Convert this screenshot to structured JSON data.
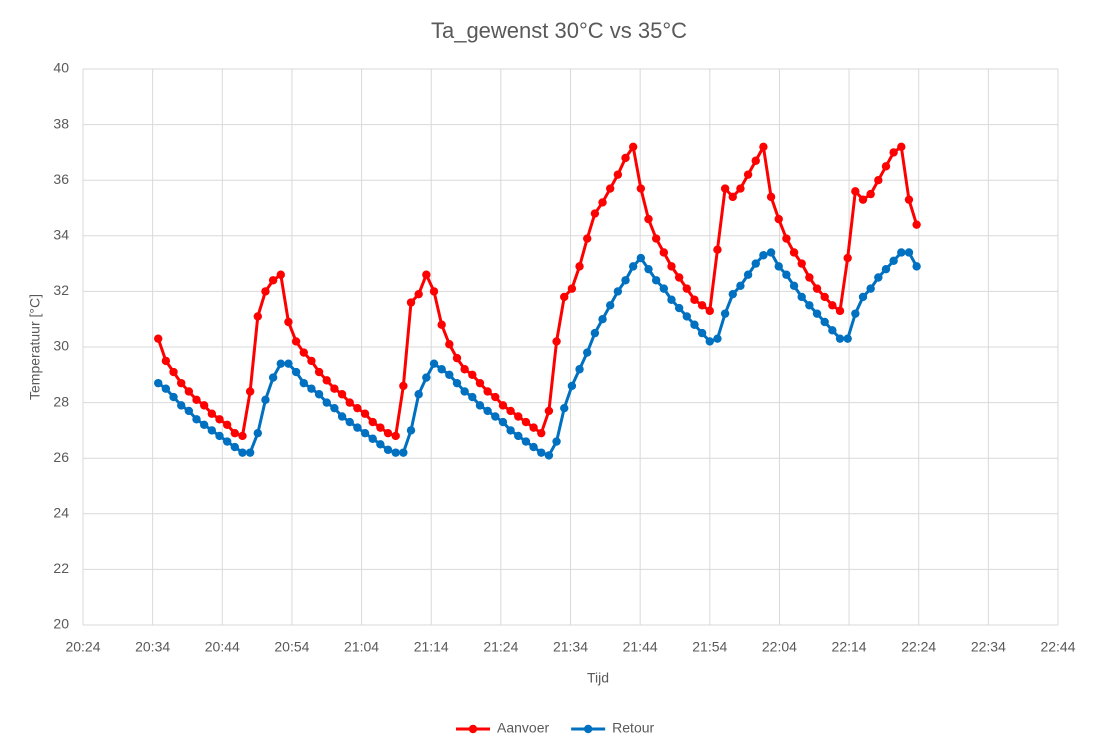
{
  "chart_data": {
    "type": "line",
    "title": "Ta_gewenst 30°C vs 35°C",
    "x_label": "Tijd",
    "y_label": "Temperatuur [°C]",
    "x": [
      1234.8,
      1235.9,
      1237.0,
      1238.1,
      1239.2,
      1240.3,
      1241.4,
      1242.5,
      1243.6,
      1244.7,
      1245.8,
      1246.9,
      1248.0,
      1249.1,
      1250.2,
      1251.3,
      1252.4,
      1253.5,
      1254.6,
      1255.7,
      1256.8,
      1257.9,
      1259.0,
      1260.1,
      1261.2,
      1262.3,
      1263.4,
      1264.5,
      1265.6,
      1266.7,
      1267.8,
      1268.9,
      1270.0,
      1271.1,
      1272.2,
      1273.3,
      1274.4,
      1275.5,
      1276.6,
      1277.7,
      1278.8,
      1279.9,
      1281.0,
      1282.1,
      1283.2,
      1284.3,
      1285.4,
      1286.5,
      1287.6,
      1288.7,
      1289.8,
      1290.9,
      1292.0,
      1293.1,
      1294.2,
      1295.3,
      1296.4,
      1297.5,
      1298.6,
      1299.7,
      1300.8,
      1301.9,
      1303.0,
      1304.1,
      1305.2,
      1306.3,
      1307.4,
      1308.5,
      1309.6,
      1310.7,
      1311.8,
      1312.9,
      1314.0,
      1315.1,
      1316.2,
      1317.3,
      1318.4,
      1319.5,
      1320.6,
      1321.7,
      1322.8,
      1323.9,
      1325.0,
      1326.1,
      1327.2,
      1328.3,
      1329.4,
      1330.5,
      1331.6,
      1332.7,
      1333.8,
      1334.9,
      1336.0,
      1337.1,
      1338.2,
      1339.3,
      1340.4,
      1341.5,
      1342.6,
      1343.7
    ],
    "series": [
      {
        "name": "Aanvoer",
        "color": "#ff0000",
        "values": [
          30.3,
          29.5,
          29.1,
          28.7,
          28.4,
          28.1,
          27.9,
          27.6,
          27.4,
          27.2,
          26.9,
          26.8,
          28.4,
          31.1,
          32.0,
          32.4,
          32.6,
          30.9,
          30.2,
          29.8,
          29.5,
          29.1,
          28.8,
          28.5,
          28.3,
          28.0,
          27.8,
          27.6,
          27.3,
          27.1,
          26.9,
          26.8,
          28.6,
          31.6,
          31.9,
          32.6,
          32.0,
          30.8,
          30.1,
          29.6,
          29.2,
          29.0,
          28.7,
          28.4,
          28.2,
          27.9,
          27.7,
          27.5,
          27.3,
          27.1,
          26.9,
          27.7,
          30.2,
          31.8,
          32.1,
          32.9,
          33.9,
          34.8,
          35.2,
          35.7,
          36.2,
          36.8,
          37.2,
          35.7,
          34.6,
          33.9,
          33.4,
          32.9,
          32.5,
          32.1,
          31.7,
          31.5,
          31.3,
          33.5,
          35.7,
          35.4,
          35.7,
          36.2,
          36.7,
          37.2,
          35.4,
          34.6,
          33.9,
          33.4,
          33.0,
          32.5,
          32.1,
          31.8,
          31.5,
          31.3,
          33.2,
          35.6,
          35.3,
          35.5,
          36.0,
          36.5,
          37.0,
          37.2,
          35.3,
          34.4
        ]
      },
      {
        "name": "Retour",
        "color": "#0070c0",
        "values": [
          28.7,
          28.5,
          28.2,
          27.9,
          27.7,
          27.4,
          27.2,
          27.0,
          26.8,
          26.6,
          26.4,
          26.2,
          26.2,
          26.9,
          28.1,
          28.9,
          29.4,
          29.4,
          29.1,
          28.7,
          28.5,
          28.3,
          28.0,
          27.8,
          27.5,
          27.3,
          27.1,
          26.9,
          26.7,
          26.5,
          26.3,
          26.2,
          26.2,
          27.0,
          28.3,
          28.9,
          29.4,
          29.2,
          29.0,
          28.7,
          28.4,
          28.2,
          27.9,
          27.7,
          27.5,
          27.3,
          27.0,
          26.8,
          26.6,
          26.4,
          26.2,
          26.1,
          26.6,
          27.8,
          28.6,
          29.2,
          29.8,
          30.5,
          31.0,
          31.5,
          32.0,
          32.4,
          32.9,
          33.2,
          32.8,
          32.4,
          32.1,
          31.7,
          31.4,
          31.1,
          30.8,
          30.5,
          30.2,
          30.3,
          31.2,
          31.9,
          32.2,
          32.6,
          33.0,
          33.3,
          33.4,
          32.9,
          32.6,
          32.2,
          31.8,
          31.5,
          31.2,
          30.9,
          30.6,
          30.3,
          30.3,
          31.2,
          31.8,
          32.1,
          32.5,
          32.8,
          33.1,
          33.4,
          33.4,
          32.9
        ]
      }
    ],
    "xlim": [
      1224,
      1364
    ],
    "xticks": [
      {
        "value": 1224,
        "label": "20:24"
      },
      {
        "value": 1234,
        "label": "20:34"
      },
      {
        "value": 1244,
        "label": "20:44"
      },
      {
        "value": 1254,
        "label": "20:54"
      },
      {
        "value": 1264,
        "label": "21:04"
      },
      {
        "value": 1274,
        "label": "21:14"
      },
      {
        "value": 1284,
        "label": "21:24"
      },
      {
        "value": 1294,
        "label": "21:34"
      },
      {
        "value": 1304,
        "label": "21:44"
      },
      {
        "value": 1314,
        "label": "21:54"
      },
      {
        "value": 1324,
        "label": "22:04"
      },
      {
        "value": 1334,
        "label": "22:14"
      },
      {
        "value": 1344,
        "label": "22:24"
      },
      {
        "value": 1354,
        "label": "22:34"
      },
      {
        "value": 1364,
        "label": "22:44"
      }
    ],
    "ylim": [
      20,
      40
    ],
    "yticks": [
      20,
      22,
      24,
      26,
      28,
      30,
      32,
      34,
      36,
      38,
      40
    ],
    "grid": true,
    "legend": "bottom"
  }
}
